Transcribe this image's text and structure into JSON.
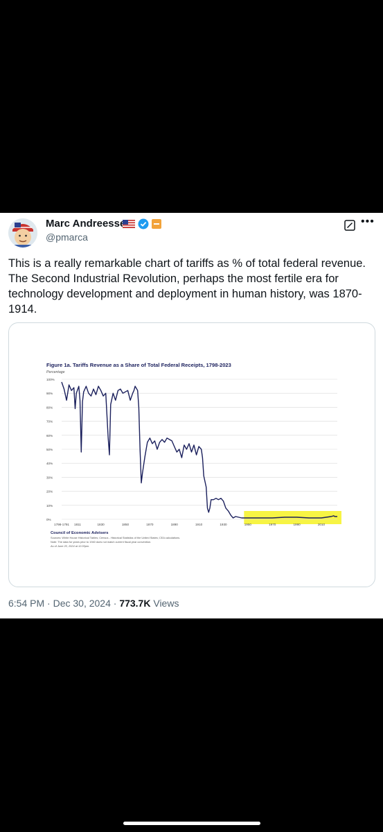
{
  "tweet": {
    "author_name": "Marc Andreessen",
    "handle": "@pmarca",
    "text": "This is a really remarkable chart of tariffs as % of total federal revenue. The Second Industrial Revolution, perhaps the most fertile era for technology development and deployment in human history, was 1870-1914.",
    "timestamp": "6:54 PM · Dec 30, 2024 · ",
    "views_count": "773.7K",
    "views_label": "Views"
  },
  "badges": {
    "flag": "us-flag-icon",
    "verified": "verified-icon",
    "org": "org-badge-icon"
  },
  "colors": {
    "line": "#1a1f5c",
    "highlight": "#f6f223",
    "verified": "#1d9bf0"
  },
  "chart_data": {
    "type": "line",
    "title": "Figure 1a. Tariffs Revenue as a Share of Total Federal Receipts, 1798-2023",
    "ylabel": "Percentage",
    "ylim": [
      0,
      100
    ],
    "yticks": [
      "100%",
      "90%",
      "80%",
      "70%",
      "60%",
      "50%",
      "40%",
      "30%",
      "20%",
      "10%",
      "0%"
    ],
    "xticks": [
      "1798-1791",
      "1811",
      "1830",
      "1850",
      "1870",
      "1890",
      "1910",
      "1930",
      "1950",
      "1970",
      "1990",
      "2010"
    ],
    "xtick_years": [
      1798,
      1811,
      1830,
      1850,
      1870,
      1890,
      1910,
      1930,
      1950,
      1970,
      1990,
      2010
    ],
    "xlim": [
      1798,
      2023
    ],
    "highlight_range": [
      1948,
      2023
    ],
    "source_title": "Council of Economic Advisers",
    "source_lines": [
      "Sources: White House Historical Tables; Census - Historical Statistics of the United States; CEA calculations.",
      "Note: The data for years prior to 1940 does not match current fiscal year convention.",
      "As of June 20, 2024 at 12:00pm."
    ],
    "x": [
      1798,
      1800,
      1802,
      1804,
      1806,
      1808,
      1809,
      1810,
      1812,
      1813,
      1814,
      1815,
      1816,
      1818,
      1820,
      1822,
      1824,
      1826,
      1828,
      1830,
      1832,
      1834,
      1836,
      1837,
      1838,
      1840,
      1842,
      1844,
      1846,
      1848,
      1850,
      1852,
      1854,
      1856,
      1857,
      1858,
      1860,
      1861,
      1862,
      1863,
      1864,
      1866,
      1868,
      1870,
      1872,
      1874,
      1876,
      1878,
      1880,
      1882,
      1884,
      1886,
      1888,
      1890,
      1892,
      1894,
      1896,
      1898,
      1900,
      1902,
      1904,
      1906,
      1908,
      1910,
      1912,
      1913,
      1914,
      1916,
      1917,
      1918,
      1919,
      1920,
      1922,
      1924,
      1926,
      1928,
      1930,
      1932,
      1934,
      1936,
      1938,
      1940,
      1945,
      1950,
      1960,
      1970,
      1980,
      1990,
      2000,
      2010,
      2018,
      2020,
      2021,
      2023
    ],
    "y": [
      98,
      93,
      85,
      96,
      92,
      94,
      79,
      90,
      95,
      85,
      48,
      84,
      91,
      95,
      90,
      88,
      93,
      89,
      95,
      92,
      88,
      90,
      58,
      46,
      82,
      90,
      85,
      92,
      93,
      90,
      91,
      92,
      85,
      90,
      92,
      95,
      92,
      80,
      50,
      26,
      33,
      45,
      55,
      58,
      54,
      56,
      50,
      55,
      57,
      55,
      58,
      57,
      56,
      52,
      48,
      50,
      44,
      53,
      50,
      54,
      48,
      53,
      46,
      52,
      50,
      44,
      31,
      23,
      8,
      5,
      8,
      14,
      14,
      15,
      14,
      15,
      13,
      8,
      6,
      3,
      1,
      2,
      1,
      1,
      1,
      1,
      1.5,
      1.5,
      1,
      1,
      2,
      2.5,
      2,
      2
    ]
  }
}
